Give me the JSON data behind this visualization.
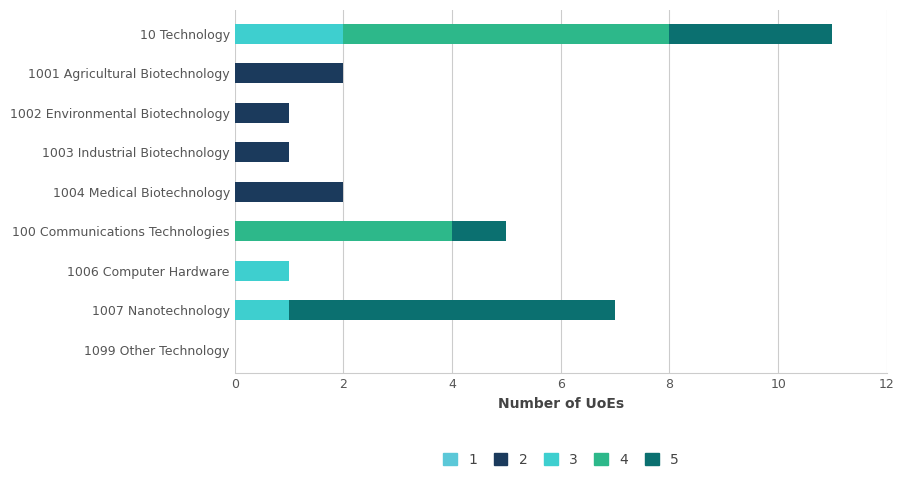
{
  "categories": [
    "10 Technology",
    "1001 Agricultural Biotechnology",
    "1002 Environmental Biotechnology",
    "1003 Industrial Biotechnology",
    "1004 Medical Biotechnology",
    "100 Communications Technologies",
    "1006 Computer Hardware",
    "1007 Nanotechnology",
    "1099 Other Technology"
  ],
  "ratings": [
    "1",
    "2",
    "3",
    "4",
    "5"
  ],
  "colors": [
    "#5bc8d8",
    "#1b3a5c",
    "#3ecfcf",
    "#2db88a",
    "#0b7070"
  ],
  "data": {
    "1": [
      0,
      0,
      0,
      0,
      0,
      0,
      0,
      0,
      0
    ],
    "2": [
      0,
      2,
      1,
      1,
      2,
      0,
      0,
      0,
      0
    ],
    "3": [
      2,
      0,
      0,
      0,
      0,
      0,
      1,
      1,
      0
    ],
    "4": [
      6,
      0,
      0,
      0,
      0,
      4,
      0,
      0,
      0
    ],
    "5": [
      3,
      0,
      0,
      0,
      0,
      1,
      0,
      6,
      0
    ]
  },
  "xlabel": "Number of UoEs",
  "xlim": [
    0,
    12
  ],
  "xticks": [
    0,
    2,
    4,
    6,
    8,
    10,
    12
  ],
  "background_color": "#ffffff",
  "grid_color": "#cccccc",
  "bar_height": 0.5,
  "legend_labels": [
    "1",
    "2",
    "3",
    "4",
    "5"
  ],
  "label_fontsize": 9,
  "xlabel_fontsize": 10,
  "tick_fontsize": 9
}
